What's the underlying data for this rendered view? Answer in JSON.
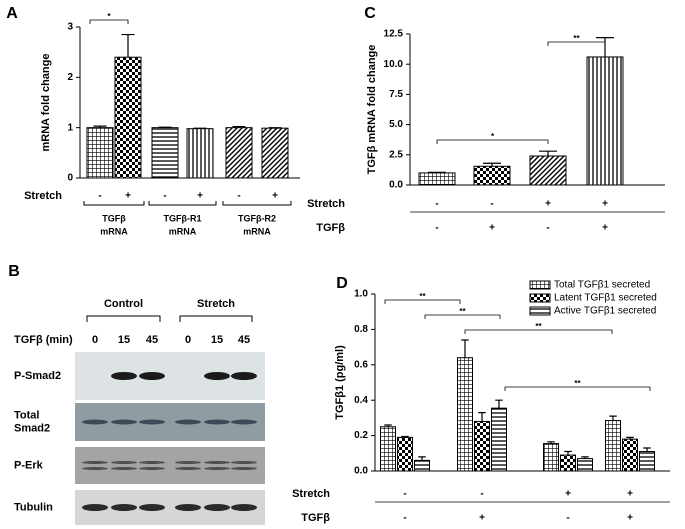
{
  "chart_data": [
    {
      "type": "bar",
      "panel": "A",
      "ylabel": "mRNA fold change",
      "ylim": [
        0,
        3
      ],
      "yticks": [
        0,
        1,
        2,
        3
      ],
      "rows": [
        {
          "name": "Stretch",
          "labels": [
            "-",
            "+",
            "-",
            "+",
            "-",
            "+"
          ]
        }
      ],
      "values": [
        1.0,
        2.4,
        1.0,
        0.98,
        1.0,
        0.99
      ],
      "errors": [
        0.03,
        0.45,
        0.01,
        0.01,
        0.02,
        0.01
      ],
      "groups": [
        [
          "TGFβ",
          "mRNA"
        ],
        [
          "TGFβ-R1",
          "mRNA"
        ],
        [
          "TGFβ-R2",
          "mRNA"
        ]
      ],
      "annotations": [
        "*"
      ]
    },
    {
      "type": "bar",
      "panel": "C",
      "ylabel": "TGFβ mRNA fold change",
      "ylim": [
        0,
        12.5
      ],
      "yticks": [
        {
          "value": 0,
          "label": "0.0"
        },
        2.5,
        {
          "value": 5,
          "label": "5.0"
        },
        7.5,
        {
          "value": 10,
          "label": "10.0"
        },
        12.5
      ],
      "rows": [
        {
          "name": "Stretch",
          "labels": [
            "-",
            "-",
            "+",
            "+"
          ]
        },
        {
          "name": "TGFβ",
          "labels": [
            "-",
            "+",
            "-",
            "+"
          ]
        }
      ],
      "values": [
        1.0,
        1.55,
        2.4,
        10.6
      ],
      "errors": [
        0.05,
        0.25,
        0.4,
        1.6
      ],
      "annotations": [
        "*",
        "**"
      ]
    },
    {
      "type": "grouped_bar",
      "panel": "D",
      "ylabel": "TGFβ1 (pg/ml)",
      "ylim": [
        0,
        1.0
      ],
      "yticks": [
        {
          "value": 0,
          "label": "0.0"
        },
        0.2,
        0.4,
        0.6,
        0.8,
        {
          "value": 1.0,
          "label": "1.0"
        }
      ],
      "rows": [
        {
          "name": "Stretch",
          "labels": [
            "-",
            "-",
            "+",
            "+"
          ]
        },
        {
          "name": "TGFβ",
          "labels": [
            "-",
            "+",
            "-",
            "+"
          ]
        }
      ],
      "series": [
        {
          "name": "Total TGFβ1 secreted",
          "values": [
            0.25,
            0.64,
            0.155,
            0.285
          ],
          "errors": [
            0.01,
            0.1,
            0.01,
            0.025
          ]
        },
        {
          "name": "Latent TGFβ1 secreted",
          "values": [
            0.19,
            0.28,
            0.09,
            0.18
          ],
          "errors": [
            0.005,
            0.05,
            0.02,
            0.01
          ]
        },
        {
          "name": "Active TGFβ1 secreted",
          "values": [
            0.06,
            0.355,
            0.07,
            0.11
          ],
          "errors": [
            0.02,
            0.045,
            0.01,
            0.02
          ]
        }
      ],
      "legend": "top-right",
      "annotations": [
        "**",
        "**",
        "**",
        "**"
      ]
    }
  ],
  "blot": {
    "panel": "B",
    "groups": [
      "Control",
      "Stretch"
    ],
    "lane_label": "TGFβ (min)",
    "lanes": [
      "0",
      "15",
      "45",
      "0",
      "15",
      "45"
    ],
    "rows": [
      [
        "P-Smad2"
      ],
      [
        "Total",
        "Smad2"
      ],
      [
        "P-Erk"
      ],
      [
        "Tubulin"
      ]
    ]
  }
}
